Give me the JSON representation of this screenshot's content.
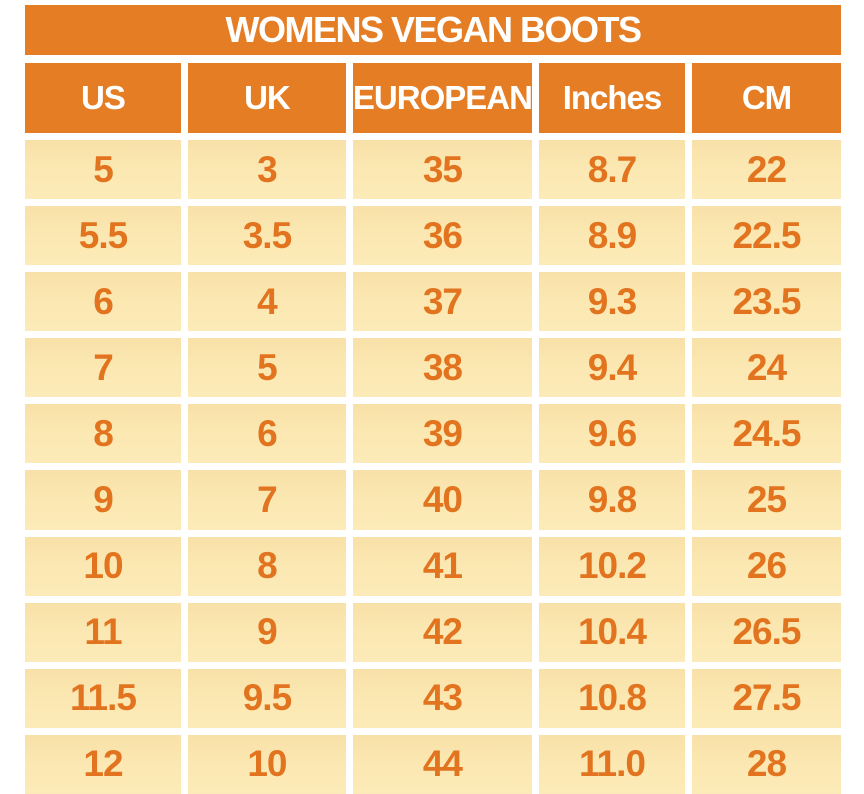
{
  "chart_data": {
    "type": "table",
    "title": "WOMENS VEGAN BOOTS",
    "columns": [
      "US",
      "UK",
      "EUROPEAN",
      "Inches",
      "CM"
    ],
    "rows": [
      [
        "5",
        "3",
        "35",
        "8.7",
        "22"
      ],
      [
        "5.5",
        "3.5",
        "36",
        "8.9",
        "22.5"
      ],
      [
        "6",
        "4",
        "37",
        "9.3",
        "23.5"
      ],
      [
        "7",
        "5",
        "38",
        "9.4",
        "24"
      ],
      [
        "8",
        "6",
        "39",
        "9.6",
        "24.5"
      ],
      [
        "9",
        "7",
        "40",
        "9.8",
        "25"
      ],
      [
        "10",
        "8",
        "41",
        "10.2",
        "26"
      ],
      [
        "11",
        "9",
        "42",
        "10.4",
        "26.5"
      ],
      [
        "11.5",
        "9.5",
        "43",
        "10.8",
        "27.5"
      ],
      [
        "12",
        "10",
        "44",
        "11.0",
        "28"
      ]
    ],
    "layout": {
      "grid": false,
      "legend": "none"
    }
  },
  "colors": {
    "orange": "#E57D25",
    "cream": "#FBE7B1",
    "number_text": "#E2741F",
    "header_text": "#FFFFFF",
    "page_background": "#FFFFFF"
  }
}
